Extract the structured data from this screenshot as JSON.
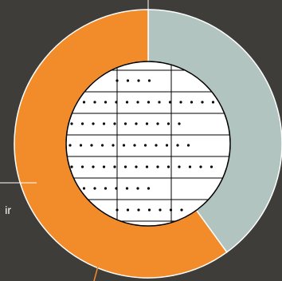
{
  "chart_data": {
    "type": "pie",
    "style": "donut",
    "categories": [
      "",
      ""
    ],
    "values": [
      40,
      60
    ],
    "colors": [
      "#b2c4c0",
      "#f28c2a"
    ],
    "callout_text": "ir",
    "center_icon": "dotted-grid-circle-icon",
    "title": "",
    "legend": "none"
  },
  "colors": {
    "background": "#3f3d39",
    "leader_line": "#ffffff",
    "ring_stroke": "#ffffff",
    "center_fill": "#ffffff",
    "grid_ink": "#000000"
  }
}
